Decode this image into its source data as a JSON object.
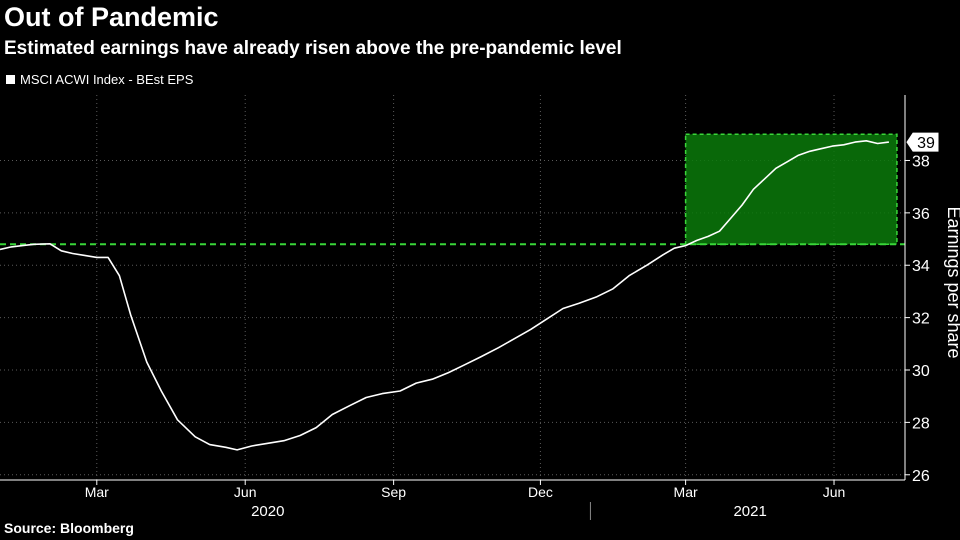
{
  "header": {
    "title": "Out of Pandemic",
    "subtitle": "Estimated earnings have already risen above the pre-pandemic level"
  },
  "legend": {
    "label": "MSCI ACWI Index - BEst EPS"
  },
  "footer": {
    "source": "Source: Bloomberg"
  },
  "colors": {
    "background": "#000000",
    "line": "#ffffff",
    "accent_green": "#39d639",
    "box_fill": "#0a7a0a",
    "grid": "#5a5a5a"
  },
  "chart_data": {
    "type": "line",
    "ylabel": "Earnings per share",
    "ylim": [
      25.8,
      40.5
    ],
    "yticks": [
      26,
      28,
      30,
      32,
      34,
      36,
      38
    ],
    "xlim": [
      "2020-01-01",
      "2021-07-15"
    ],
    "xticks": [
      {
        "date": "2020-03-01",
        "label": "Mar"
      },
      {
        "date": "2020-06-01",
        "label": "Jun"
      },
      {
        "date": "2020-09-01",
        "label": "Sep"
      },
      {
        "date": "2020-12-01",
        "label": "Dec"
      },
      {
        "date": "2021-03-01",
        "label": "Mar"
      },
      {
        "date": "2021-06-01",
        "label": "Jun"
      }
    ],
    "years": [
      {
        "label": "2020",
        "center": "2020-06-15"
      },
      {
        "label": "2021",
        "center": "2021-04-10"
      }
    ],
    "year_divider": "2021-01-01",
    "last_value_label": "39",
    "reference_level": 34.8,
    "highlight_box": {
      "x0": "2021-03-01",
      "x1": "2021-07-10",
      "y0": 34.8,
      "y1": 39.0
    },
    "series": [
      {
        "name": "MSCI ACWI Index - BEst EPS",
        "points": [
          [
            "2020-01-01",
            34.6
          ],
          [
            "2020-01-08",
            34.7
          ],
          [
            "2020-01-15",
            34.75
          ],
          [
            "2020-01-22",
            34.8
          ],
          [
            "2020-02-01",
            34.82
          ],
          [
            "2020-02-08",
            34.55
          ],
          [
            "2020-02-15",
            34.45
          ],
          [
            "2020-02-22",
            34.38
          ],
          [
            "2020-03-01",
            34.3
          ],
          [
            "2020-03-08",
            34.3
          ],
          [
            "2020-03-15",
            33.6
          ],
          [
            "2020-03-22",
            32.1
          ],
          [
            "2020-04-01",
            30.3
          ],
          [
            "2020-04-10",
            29.2
          ],
          [
            "2020-04-20",
            28.1
          ],
          [
            "2020-05-01",
            27.45
          ],
          [
            "2020-05-10",
            27.15
          ],
          [
            "2020-05-20",
            27.05
          ],
          [
            "2020-05-27",
            26.95
          ],
          [
            "2020-06-05",
            27.1
          ],
          [
            "2020-06-15",
            27.2
          ],
          [
            "2020-06-25",
            27.3
          ],
          [
            "2020-07-05",
            27.5
          ],
          [
            "2020-07-15",
            27.8
          ],
          [
            "2020-07-25",
            28.3
          ],
          [
            "2020-08-05",
            28.65
          ],
          [
            "2020-08-15",
            28.95
          ],
          [
            "2020-08-25",
            29.1
          ],
          [
            "2020-09-05",
            29.2
          ],
          [
            "2020-09-15",
            29.5
          ],
          [
            "2020-09-25",
            29.65
          ],
          [
            "2020-10-05",
            29.9
          ],
          [
            "2020-10-15",
            30.2
          ],
          [
            "2020-10-25",
            30.5
          ],
          [
            "2020-11-05",
            30.85
          ],
          [
            "2020-11-15",
            31.2
          ],
          [
            "2020-11-25",
            31.55
          ],
          [
            "2020-12-05",
            31.95
          ],
          [
            "2020-12-15",
            32.35
          ],
          [
            "2020-12-25",
            32.55
          ],
          [
            "2021-01-05",
            32.8
          ],
          [
            "2021-01-15",
            33.1
          ],
          [
            "2021-01-25",
            33.6
          ],
          [
            "2021-02-05",
            34.0
          ],
          [
            "2021-02-15",
            34.4
          ],
          [
            "2021-02-22",
            34.65
          ],
          [
            "2021-03-01",
            34.75
          ],
          [
            "2021-03-08",
            34.95
          ],
          [
            "2021-03-15",
            35.1
          ],
          [
            "2021-03-22",
            35.3
          ],
          [
            "2021-03-29",
            35.8
          ],
          [
            "2021-04-05",
            36.3
          ],
          [
            "2021-04-12",
            36.9
          ],
          [
            "2021-04-19",
            37.3
          ],
          [
            "2021-04-26",
            37.7
          ],
          [
            "2021-05-03",
            37.95
          ],
          [
            "2021-05-10",
            38.2
          ],
          [
            "2021-05-17",
            38.35
          ],
          [
            "2021-05-24",
            38.45
          ],
          [
            "2021-05-31",
            38.55
          ],
          [
            "2021-06-07",
            38.6
          ],
          [
            "2021-06-14",
            38.7
          ],
          [
            "2021-06-21",
            38.75
          ],
          [
            "2021-06-28",
            38.65
          ],
          [
            "2021-07-05",
            38.7
          ]
        ]
      }
    ]
  }
}
